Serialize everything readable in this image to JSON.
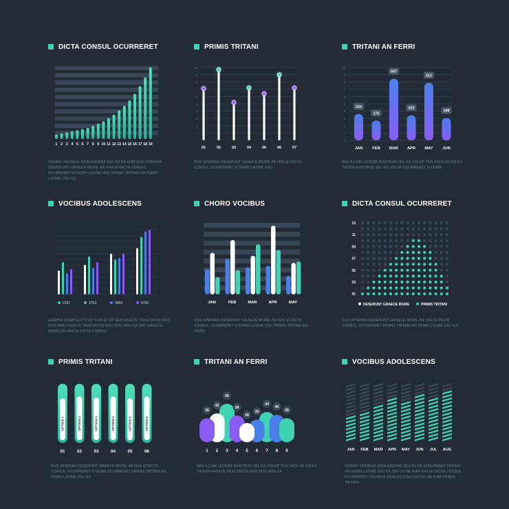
{
  "colors": {
    "background": "#232b36",
    "teal": "#3fd3b4",
    "purple": "#8a5cf5",
    "blue": "#4a7fe8",
    "white": "#ffffff",
    "stripe": "#3a4556",
    "caption": "#5c6a7c"
  },
  "panels": [
    {
      "title": "DICTA CONSUL OCURRERET",
      "caption": "CHORO VOCIBUS ADOLESCENS QUI CU NE EUM DUO APERIAN DESER UNT GRAECE IRURE AN HAS EI DICTA CONSUL OCURRERET N FERRI LATINE USU PRIMIS TRITANI AN FERRI LATINE USU EX"
    },
    {
      "title": "PRIMIS TRITANI",
      "caption": "DUO APERIAN DESERUNT GRAECE IRURE AN HAS EI DICTA CONSUL OCURRERET N FERRI LATINE USU"
    },
    {
      "title": "TRITANI AN FERRI",
      "caption": "SEA ILLUM LEGERE NOSTRUD VEL EX VOLUP TUA FACILISI VIS EX TATION NOSTRUD VEL EX VOLUP OCURRERET N FERRI"
    },
    {
      "title": "VOCIBUS ADOLESCENS",
      "caption": "EURIPIS COMPLECTITUR CUM ET AT SEA FACETE TRACTATOS DUO DUO MHE FACETE TRACTATOS DUO DUO WISI EA UNT GRAECE IRURE AN HAS EI DICTA CONSUL"
    },
    {
      "title": "CHORO VOCIBUS",
      "caption": "DUO APERIAN DESERUNT GRAECE IRURE AN HAS EI DICTA CONSUL OCURRERET N FERRI LATINE USU PRIMIS TRITANI AN FERRI"
    },
    {
      "title": "DICTA CONSUL OCURRERET",
      "caption": "DUO APERIAN DESERUNT GRAECE IRURE AN HAS EI DICTA CONSUL OCURRERET PRIMIS TRITANI AN FERRI LATINE USU EX"
    },
    {
      "title": "PRIMIS TRITANI",
      "caption": "DUO APERIAN DESERUNT GRAECE IRURE AN HAS EI DICTA CONSUL OCURRERET N FERRI OCURRERET PRIMIS TRITANI AN FERRI LATINE USU EX"
    },
    {
      "title": "TRITANI AN FERRI",
      "caption": "SEA ILLUM LEGERE NOSTRUD VEL EX VOLUP TUA FACILISI VIS EX TATION FACETE TRACTATOS DUO DUO WISI EA"
    },
    {
      "title": "VOCIBUS ADOLESCENS",
      "caption": "CHORO VOCIBUS ADOLESCENS QUI CU NE EUM PRIMIS TRITANI AN FERRI LATINE USU EX QUI CU NE EUM HAS EI DICTA CONSUL OCURRERET VOCIBUS ADOLESCENS QUI CU NE EUM PRIMIS TRITANI"
    }
  ],
  "chart_data": [
    {
      "type": "bar",
      "categories": [
        "1",
        "2",
        "3",
        "4",
        "5",
        "6",
        "7",
        "8",
        "9",
        "10",
        "11",
        "12",
        "13",
        "14",
        "15",
        "16",
        "17",
        "18",
        "19"
      ],
      "values": [
        4,
        5,
        6,
        7,
        8,
        9,
        10,
        12,
        14,
        16,
        19,
        22,
        26,
        30,
        35,
        41,
        48,
        56,
        65
      ],
      "ylim": [
        0,
        65
      ]
    },
    {
      "type": "scatter",
      "categories": [
        "01",
        "02",
        "03",
        "04",
        "05",
        "06",
        "07"
      ],
      "yticks": [
        "10",
        "9",
        "8",
        "7",
        "6",
        "5",
        "4",
        "3",
        "2",
        "1"
      ],
      "values": [
        7.1,
        9.7,
        5.2,
        7.2,
        6.4,
        9.0,
        7.2
      ],
      "ylim": [
        0,
        10
      ]
    },
    {
      "type": "bar",
      "categories": [
        "JAN",
        "FEB",
        "MAR",
        "APR",
        "MAY",
        "JUN"
      ],
      "values": [
        234,
        176,
        547,
        223,
        512,
        198
      ],
      "ylim": [
        0,
        10
      ]
    },
    {
      "type": "bar",
      "groups": [
        {
          "values": [
            34,
            46,
            30,
            36
          ]
        },
        {
          "values": [
            42,
            54,
            38,
            46
          ]
        },
        {
          "values": [
            58,
            50,
            52,
            58
          ]
        },
        {
          "values": [
            66,
            82,
            90,
            92
          ]
        }
      ],
      "legend": [
        "2357",
        "3753",
        "3856",
        "5783"
      ],
      "ylim": [
        0,
        100
      ]
    },
    {
      "type": "bar",
      "categories": [
        "JAN",
        "FEB",
        "MAR",
        "APR",
        "MAY"
      ],
      "groups": [
        {
          "values": [
            35,
            58,
            24
          ]
        },
        {
          "values": [
            50,
            76,
            34
          ]
        },
        {
          "values": [
            38,
            54,
            70
          ]
        },
        {
          "values": [
            40,
            96,
            62
          ]
        },
        {
          "values": [
            26,
            44,
            46
          ]
        }
      ],
      "ylim": [
        0,
        100
      ]
    },
    {
      "type": "heatmap",
      "yticks": [
        "13",
        "11",
        "09",
        "07",
        "05",
        "03",
        "01"
      ],
      "columns": 16,
      "rows": 13,
      "filled": [
        1,
        2,
        3,
        4,
        5,
        6,
        7,
        8,
        9,
        10,
        10,
        9,
        8,
        6,
        4,
        2
      ],
      "legend": [
        "DESERUNT GRAECE IRURE",
        "PRIMIS TRITANI"
      ]
    },
    {
      "type": "bar",
      "categories": [
        "01",
        "02",
        "03",
        "04",
        "05",
        "06"
      ],
      "labels": [
        "OPTION 1",
        "OPTION 2",
        "OPTION 3",
        "OPTION 4",
        "OPTION 5",
        "OPTION 6"
      ],
      "values": [
        82,
        86,
        84,
        86,
        82,
        86
      ],
      "ylim": [
        0,
        100
      ]
    },
    {
      "type": "area",
      "categories": [
        "1",
        "2",
        "3",
        "4",
        "5",
        "6",
        "7",
        "8",
        "9"
      ],
      "values": [
        35,
        42,
        56,
        39,
        28,
        33,
        44,
        40,
        35
      ],
      "ylim": [
        0,
        60
      ]
    },
    {
      "type": "bar",
      "categories": [
        "JAN",
        "FEB",
        "MAR",
        "APR",
        "MAY",
        "JUN",
        "JUL",
        "AUG"
      ],
      "values": [
        7,
        8,
        10,
        12,
        11,
        13,
        12,
        14
      ],
      "ylim": [
        0,
        18
      ]
    }
  ]
}
